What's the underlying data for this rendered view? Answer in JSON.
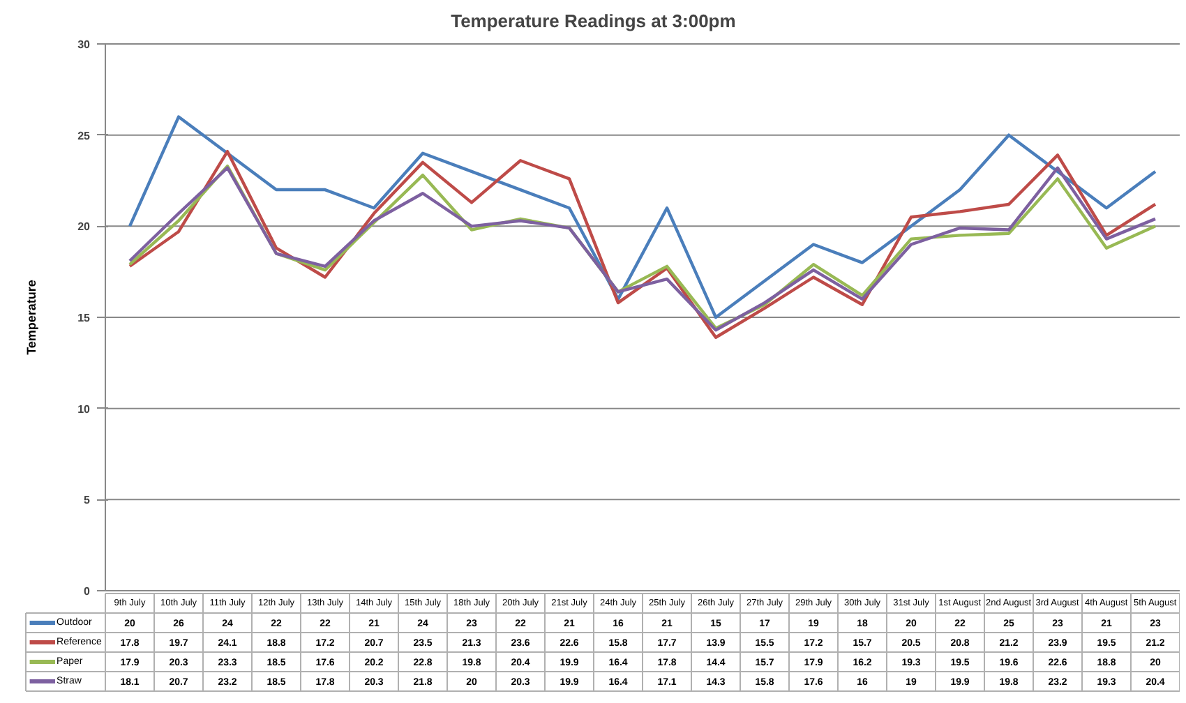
{
  "chart_data": {
    "type": "line",
    "title": "Temperature Readings  at 3:00pm",
    "ylabel": "Temperature",
    "categories": [
      "9th July",
      "10th July",
      "11th July",
      "12th July",
      "13th July",
      "14th July",
      "15th July",
      "18th July",
      "20th July",
      "21st July",
      "24th July",
      "25th July",
      "26th July",
      "27th July",
      "29th July",
      "30th July",
      "31st July",
      "1st August",
      "2nd August",
      "3rd August",
      "4th August",
      "5th August"
    ],
    "series": [
      {
        "name": "Outdoor",
        "color": "#4a7ebb",
        "values": [
          20,
          26,
          24,
          22,
          22,
          21,
          24,
          23,
          22,
          21,
          16,
          21,
          15,
          17,
          19,
          18,
          20,
          22,
          25,
          23,
          21,
          23
        ]
      },
      {
        "name": "Reference",
        "color": "#be4b48",
        "values": [
          17.8,
          19.7,
          24.1,
          18.8,
          17.2,
          20.7,
          23.5,
          21.3,
          23.6,
          22.6,
          15.8,
          17.7,
          13.9,
          15.5,
          17.2,
          15.7,
          20.5,
          20.8,
          21.2,
          23.9,
          19.5,
          21.2
        ]
      },
      {
        "name": "Paper",
        "color": "#98b954",
        "values": [
          17.9,
          20.3,
          23.3,
          18.5,
          17.6,
          20.2,
          22.8,
          19.8,
          20.4,
          19.9,
          16.4,
          17.8,
          14.4,
          15.7,
          17.9,
          16.2,
          19.3,
          19.5,
          19.6,
          22.6,
          18.8,
          20
        ]
      },
      {
        "name": "Straw",
        "color": "#7d60a0",
        "values": [
          18.1,
          20.7,
          23.2,
          18.5,
          17.8,
          20.3,
          21.8,
          20,
          20.3,
          19.9,
          16.4,
          17.1,
          14.3,
          15.8,
          17.6,
          16,
          19,
          19.9,
          19.8,
          23.2,
          19.3,
          20.4
        ]
      }
    ],
    "ylim": [
      0,
      30
    ],
    "yticks": [
      0,
      5,
      10,
      15,
      20,
      25,
      30
    ],
    "grid": "y",
    "legend": "bottom",
    "data_labels": true,
    "line_style": "solid",
    "marker": "none"
  }
}
